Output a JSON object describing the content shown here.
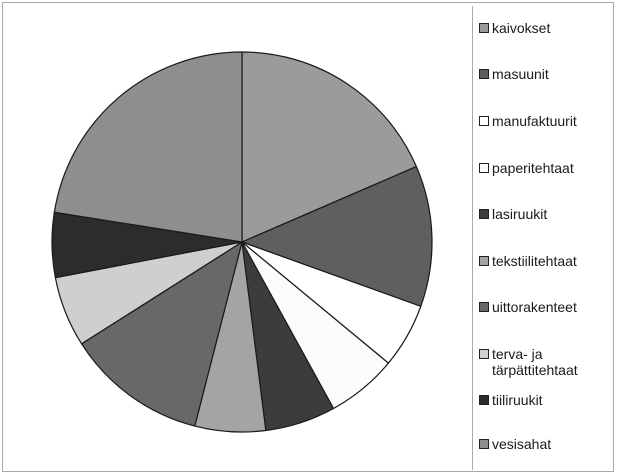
{
  "chart_data": {
    "type": "pie",
    "title": "",
    "categories": [
      "kaivokset",
      "masuunit",
      "manufaktuurit",
      "paperitehtaat",
      "lasiruukit",
      "tekstiilitehtaat",
      "uittorakenteet",
      "terva- ja\ntärpättitehtaat",
      "tiiliruukit",
      "vesisahat"
    ],
    "values": [
      18.5,
      12.0,
      5.5,
      6.0,
      6.0,
      6.0,
      12.0,
      6.0,
      5.5,
      22.5
    ],
    "colors": [
      "#9b9b9b",
      "#5f5f5f",
      "#ffffff",
      "#fbfbfb",
      "#3c3c3c",
      "#a4a4a4",
      "#686868",
      "#cfcfcf",
      "#2c2c2c",
      "#8e8e8e"
    ],
    "start": "12 o'clock",
    "direction": "clockwise",
    "legend_position": "right"
  }
}
